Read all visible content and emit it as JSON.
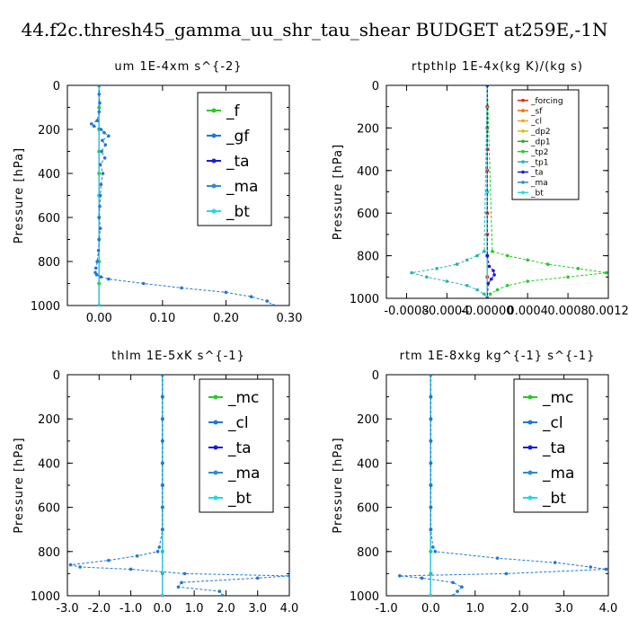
{
  "title": "44.f2c.thresh45_gamma_uu_shr_tau_shear  BUDGET at259E,-1N",
  "chart_data": [
    {
      "type": "line",
      "title": "um   1E-4xm s^{-2}",
      "ylabel": "Pressure [hPa]",
      "xlim": [
        -0.05,
        0.3
      ],
      "ylim": [
        1000,
        0
      ],
      "xticks": [
        0.0,
        0.1,
        0.2,
        0.3
      ],
      "xtick_labels": [
        "0.00",
        "0.10",
        "0.20",
        "0.30"
      ],
      "yticks": [
        0,
        200,
        400,
        600,
        800,
        1000
      ],
      "ytick_labels": [
        "0",
        "200",
        "400",
        "600",
        "800",
        "1000"
      ],
      "legend": "top-right",
      "series": [
        {
          "name": "_f",
          "color": "#22cc22",
          "y": [
            0,
            100,
            200,
            300,
            400,
            500,
            600,
            700,
            800,
            900,
            1000
          ],
          "x": [
            0,
            0,
            0,
            0,
            0,
            0,
            0,
            0,
            0,
            0,
            0
          ]
        },
        {
          "name": "_gf",
          "color": "#1f77d4",
          "y": [
            0,
            40,
            80,
            120,
            160,
            175,
            185,
            200,
            215,
            230,
            250,
            270,
            300,
            330,
            360,
            400,
            450,
            500,
            550,
            600,
            650,
            700,
            750,
            800,
            830,
            850,
            860,
            870,
            880,
            900,
            920,
            940,
            960,
            980,
            1000
          ],
          "x": [
            0.0,
            0.0,
            0.001,
            0.0,
            -0.003,
            -0.012,
            -0.008,
            0.003,
            0.008,
            0.015,
            0.005,
            0.01,
            0.004,
            0.009,
            0.002,
            0.006,
            0.003,
            0.002,
            0.001,
            0.0,
            0.002,
            0.0,
            -0.001,
            -0.003,
            -0.005,
            -0.006,
            -0.004,
            0.003,
            0.015,
            0.07,
            0.13,
            0.2,
            0.24,
            0.265,
            0.275
          ]
        },
        {
          "name": "_ta",
          "color": "#1a1adb",
          "y": [
            0,
            500,
            1000
          ],
          "x": [
            0,
            0,
            0
          ]
        },
        {
          "name": "_ma",
          "color": "#2e8bd6",
          "y": [
            0,
            500,
            1000
          ],
          "x": [
            0,
            0,
            0
          ]
        },
        {
          "name": "_bt",
          "color": "#22d8e6",
          "y": [
            0,
            500,
            1000
          ],
          "x": [
            0,
            0,
            0
          ]
        }
      ]
    },
    {
      "type": "line",
      "title": "rtpthlp   1E-4x(kg K)/(kg s)",
      "ylabel": "Pressure [hPa]",
      "xlim": [
        -0.001,
        0.0012
      ],
      "ylim": [
        1000,
        0
      ],
      "xticks": [
        -0.0008,
        -0.0004,
        0.0,
        0.0004,
        0.0008,
        0.0012
      ],
      "xtick_labels": [
        "-0.0008",
        "-0.0004",
        "-0.00000",
        "0.0004",
        "0.0008",
        "0.0012"
      ],
      "yticks": [
        0,
        200,
        400,
        600,
        800,
        1000
      ],
      "ytick_labels": [
        "0",
        "200",
        "400",
        "600",
        "800",
        "1000"
      ],
      "legend": "top-right",
      "series": [
        {
          "name": "_forcing",
          "color": "#e8241c",
          "y": [
            0,
            100,
            200,
            300,
            400,
            500,
            600,
            700,
            800,
            900,
            1000
          ],
          "x": [
            0,
            0,
            0,
            0,
            0,
            0,
            0,
            0,
            0,
            0,
            0
          ]
        },
        {
          "name": "_sf",
          "color": "#ff6a00",
          "y": [
            0,
            500,
            1000
          ],
          "x": [
            0,
            0,
            0
          ]
        },
        {
          "name": "_cl",
          "color": "#f5a31a",
          "y": [
            0,
            500,
            1000
          ],
          "x": [
            0,
            0,
            0
          ]
        },
        {
          "name": "_dp2",
          "color": "#d9c100",
          "y": [
            0,
            500,
            1000
          ],
          "x": [
            0,
            0,
            0
          ]
        },
        {
          "name": "_dp1",
          "color": "#33aa1f",
          "y": [
            0,
            500,
            1000
          ],
          "x": [
            0,
            0,
            0
          ]
        },
        {
          "name": "_tp2",
          "color": "#22cc22",
          "y": [
            0,
            780,
            800,
            820,
            840,
            860,
            880,
            900,
            920,
            940,
            960,
            980,
            1000
          ],
          "x": [
            0,
            5e-05,
            0.0002,
            0.0004,
            0.0006,
            0.0009,
            0.00118,
            0.0008,
            0.0004,
            0.0002,
            0.0001,
            3e-05,
            0
          ]
        },
        {
          "name": "_tp1",
          "color": "#2bb5a8",
          "y": [
            0,
            780,
            800,
            820,
            840,
            860,
            880,
            900,
            920,
            940,
            960,
            980,
            1000
          ],
          "x": [
            0,
            -3e-05,
            -0.0001,
            -0.0002,
            -0.0003,
            -0.0005,
            -0.00075,
            -0.0006,
            -0.0004,
            -0.0002,
            -0.0001,
            -3e-05,
            0
          ]
        },
        {
          "name": "_ta",
          "color": "#1a1adb",
          "y": [
            0,
            800,
            850,
            870,
            890,
            910,
            930,
            1000
          ],
          "x": [
            0,
            0,
            2e-05,
            6e-05,
            7e-05,
            4e-05,
            1e-05,
            0
          ]
        },
        {
          "name": "_ma",
          "color": "#2e8bd6",
          "y": [
            0,
            500,
            1000
          ],
          "x": [
            0,
            0,
            0
          ]
        },
        {
          "name": "_bt",
          "color": "#22d8e6",
          "y": [
            0,
            500,
            1000
          ],
          "x": [
            0,
            0,
            0
          ]
        }
      ]
    },
    {
      "type": "line",
      "title": "thlm   1E-5xK  s^{-1}",
      "ylabel": "Pressure [hPa]",
      "xlim": [
        -3.0,
        4.0
      ],
      "ylim": [
        1000,
        0
      ],
      "xticks": [
        -3.0,
        -2.0,
        -1.0,
        0.0,
        1.0,
        2.0,
        3.0,
        4.0
      ],
      "xtick_labels": [
        "-3.0",
        "-2.0",
        "-1.0",
        "0.0",
        "1.0",
        "2.0",
        "3.0",
        "4.0"
      ],
      "yticks": [
        0,
        200,
        400,
        600,
        800,
        1000
      ],
      "ytick_labels": [
        "0",
        "200",
        "400",
        "600",
        "800",
        "1000"
      ],
      "legend": "top-right",
      "series": [
        {
          "name": "_mc",
          "color": "#22cc22",
          "y": [
            0,
            100,
            200,
            300,
            400,
            500,
            600,
            700,
            800,
            900,
            1000
          ],
          "x": [
            0,
            0,
            0,
            0,
            0,
            0,
            0,
            0,
            0,
            0,
            0
          ]
        },
        {
          "name": "_cl",
          "color": "#1f77d4",
          "y": [
            0,
            100,
            200,
            300,
            400,
            500,
            600,
            700,
            780,
            800,
            820,
            840,
            860,
            870,
            880,
            900,
            910,
            920,
            940,
            960,
            980,
            1000
          ],
          "x": [
            0,
            0,
            0,
            0,
            0,
            0,
            0,
            0,
            -0.1,
            -0.15,
            -0.8,
            -1.7,
            -2.9,
            -2.6,
            -1.0,
            0.7,
            4.0,
            3.0,
            0.6,
            0.5,
            1.8,
            1.9
          ]
        },
        {
          "name": "_ta",
          "color": "#1a1adb",
          "y": [
            0,
            500,
            1000
          ],
          "x": [
            0,
            0,
            0
          ]
        },
        {
          "name": "_ma",
          "color": "#2e8bd6",
          "y": [
            0,
            500,
            1000
          ],
          "x": [
            0,
            0,
            0
          ]
        },
        {
          "name": "_bt",
          "color": "#22d8e6",
          "y": [
            0,
            500,
            1000
          ],
          "x": [
            0,
            0,
            0
          ]
        }
      ]
    },
    {
      "type": "line",
      "title": "rtm   1E-8xkg kg^{-1} s^{-1}",
      "ylabel": "Pressure [hPa]",
      "xlim": [
        -1.0,
        4.0
      ],
      "ylim": [
        1000,
        0
      ],
      "xticks": [
        -1.0,
        0.0,
        1.0,
        2.0,
        3.0,
        4.0
      ],
      "xtick_labels": [
        "-1.0",
        "0.0",
        "1.0",
        "2.0",
        "3.0",
        "4.0"
      ],
      "yticks": [
        0,
        200,
        400,
        600,
        800,
        1000
      ],
      "ytick_labels": [
        "0",
        "200",
        "400",
        "600",
        "800",
        "1000"
      ],
      "legend": "top-right",
      "series": [
        {
          "name": "_mc",
          "color": "#22cc22",
          "y": [
            0,
            100,
            200,
            300,
            400,
            500,
            600,
            700,
            800,
            900,
            1000
          ],
          "x": [
            0,
            0,
            0,
            0,
            0,
            0,
            0,
            0,
            0,
            0,
            0
          ]
        },
        {
          "name": "_cl",
          "color": "#1f77d4",
          "y": [
            0,
            100,
            200,
            300,
            400,
            500,
            600,
            700,
            780,
            800,
            830,
            850,
            870,
            880,
            900,
            910,
            920,
            940,
            960,
            980,
            1000
          ],
          "x": [
            0,
            0,
            0,
            0,
            0,
            0,
            0,
            0,
            0.05,
            0.1,
            1.5,
            2.8,
            3.6,
            3.95,
            1.7,
            -0.7,
            -0.2,
            0.5,
            0.7,
            0.6,
            0.5
          ]
        },
        {
          "name": "_ta",
          "color": "#1a1adb",
          "y": [
            0,
            500,
            1000
          ],
          "x": [
            0,
            0,
            0
          ]
        },
        {
          "name": "_ma",
          "color": "#2e8bd6",
          "y": [
            0,
            500,
            1000
          ],
          "x": [
            0,
            0,
            0
          ]
        },
        {
          "name": "_bt",
          "color": "#22d8e6",
          "y": [
            0,
            500,
            1000
          ],
          "x": [
            0,
            0,
            0
          ]
        }
      ]
    }
  ]
}
